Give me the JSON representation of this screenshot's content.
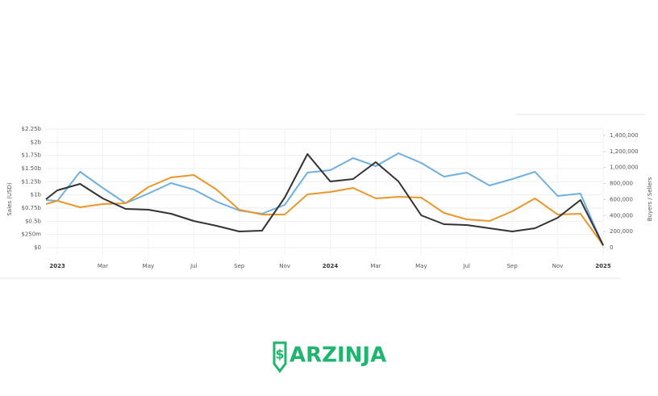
{
  "chart_data": {
    "type": "line",
    "ylabel": "Sales (USD)",
    "y2label": "Buyers / Sellers",
    "x": [
      -0.5,
      0,
      1,
      2,
      3,
      4,
      5,
      6,
      7,
      8,
      9,
      10,
      11,
      12,
      13,
      14,
      15,
      16,
      17,
      18,
      19,
      20,
      21,
      22,
      23,
      24
    ],
    "xlim": [
      -0.5,
      24
    ],
    "xticks": [
      {
        "value": 0,
        "label": "2023"
      },
      {
        "value": 2,
        "label": "Mar"
      },
      {
        "value": 4,
        "label": "May"
      },
      {
        "value": 6,
        "label": "Jul"
      },
      {
        "value": 8,
        "label": "Sep"
      },
      {
        "value": 10,
        "label": "Nov"
      },
      {
        "value": 12,
        "label": "2024"
      },
      {
        "value": 14,
        "label": "Mar"
      },
      {
        "value": 16,
        "label": "May"
      },
      {
        "value": 18,
        "label": "Jul"
      },
      {
        "value": 20,
        "label": "Sep"
      },
      {
        "value": 22,
        "label": "Nov"
      },
      {
        "value": 24,
        "label": "2025"
      }
    ],
    "ylim": [
      0,
      2250000000
    ],
    "yticks": [
      {
        "value": 0,
        "label": "$0"
      },
      {
        "value": 250000000,
        "label": "$250m"
      },
      {
        "value": 500000000,
        "label": "$0.5b"
      },
      {
        "value": 750000000,
        "label": "$0.75b"
      },
      {
        "value": 1000000000,
        "label": "$1b"
      },
      {
        "value": 1250000000,
        "label": "$1.25b"
      },
      {
        "value": 1500000000,
        "label": "$1.50b"
      },
      {
        "value": 1750000000,
        "label": "$1.75b"
      },
      {
        "value": 2000000000,
        "label": "$2b"
      },
      {
        "value": 2250000000,
        "label": "$2.25b"
      }
    ],
    "y2lim": [
      0,
      1480000
    ],
    "y2ticks": [
      0,
      {
        "value": 200000,
        "label": "200,000"
      },
      {
        "value": 400000,
        "label": "400,000"
      },
      {
        "value": 600000,
        "label": "600,000"
      },
      {
        "value": 800000,
        "label": "800,000"
      },
      {
        "value": 1000000,
        "label": "1,000,000"
      },
      {
        "value": 1200000,
        "label": "1,200,000"
      },
      {
        "value": 1400000,
        "label": "1,400,000"
      }
    ],
    "grid": true,
    "series": [
      {
        "color": "#6fb0e0",
        "axis": "y2",
        "values": [
          594000,
          584000,
          946000,
          745000,
          554000,
          675000,
          805000,
          725000,
          574000,
          463000,
          423000,
          534000,
          936000,
          967000,
          1118000,
          1017000,
          1178000,
          1057000,
          886000,
          936000,
          775000,
          856000,
          946000,
          644000,
          675000,
          20000
        ]
      },
      {
        "color": "#e8982a",
        "axis": "y2",
        "values": [
          544000,
          584000,
          503000,
          544000,
          554000,
          755000,
          876000,
          906000,
          725000,
          473000,
          413000,
          413000,
          664000,
          695000,
          745000,
          614000,
          634000,
          624000,
          433000,
          352000,
          332000,
          453000,
          614000,
          413000,
          423000,
          30000
        ]
      },
      {
        "color": "#333333",
        "values": [
          918000000,
          1087000000,
          1209000000,
          934000000,
          735000000,
          719000000,
          643000000,
          505000000,
          413000000,
          306000000,
          321000000,
          949000000,
          1776000000,
          1255000000,
          1301000000,
          1623000000,
          1255000000,
          612000000,
          444000000,
          429000000,
          367000000,
          306000000,
          367000000,
          566000000,
          903000000,
          46000000
        ]
      }
    ]
  },
  "logo": {
    "text": "ARZINJA"
  }
}
